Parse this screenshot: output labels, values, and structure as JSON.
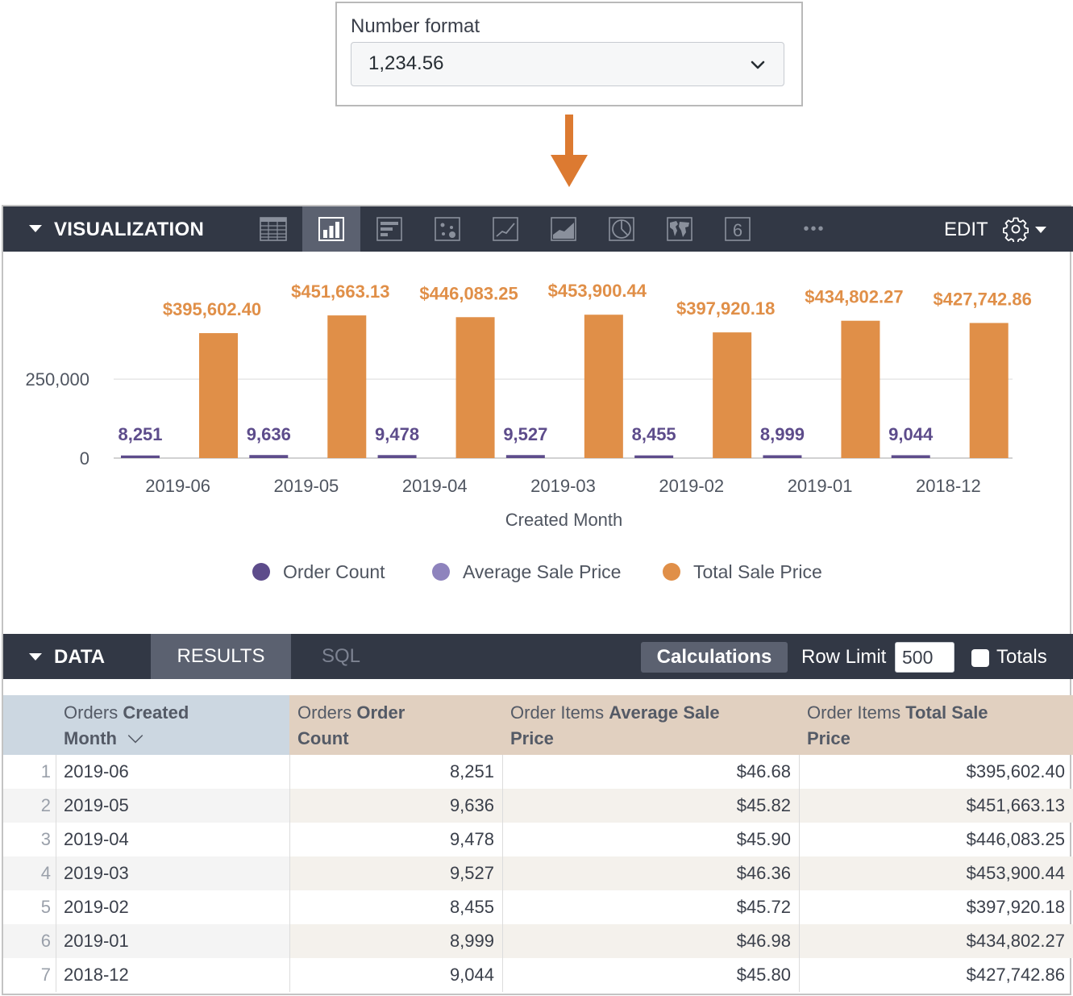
{
  "number_format": {
    "label": "Number format",
    "value": "1,234.56"
  },
  "visualization": {
    "title": "VISUALIZATION",
    "types": [
      "table-icon",
      "column-icon",
      "bar-icon",
      "scatter-icon",
      "line-icon",
      "area-icon",
      "pie-icon",
      "map-icon",
      "single-value-icon",
      "more-icon"
    ],
    "active_type": "column-icon",
    "single_value_glyph": "6",
    "more_glyph": "•••",
    "edit_label": "EDIT"
  },
  "chart_data": {
    "type": "bar",
    "categories": [
      "2019-06",
      "2019-05",
      "2019-04",
      "2019-03",
      "2019-02",
      "2019-01",
      "2018-12"
    ],
    "series": [
      {
        "name": "Order Count",
        "values": [
          8251,
          9636,
          9478,
          9527,
          8455,
          8999,
          9044
        ],
        "labels": [
          "8,251",
          "9,636",
          "9,478",
          "9,527",
          "8,455",
          "8,999",
          "9,044"
        ],
        "color": "#5d4c8b"
      },
      {
        "name": "Average Sale Price",
        "values": [
          46.68,
          45.82,
          45.9,
          46.36,
          45.72,
          46.98,
          45.8
        ],
        "labels": [],
        "color": "#8e83bd"
      },
      {
        "name": "Total Sale Price",
        "values": [
          395602.4,
          451663.13,
          446083.25,
          453900.44,
          397920.18,
          434802.27,
          427742.86
        ],
        "labels": [
          "$395,602.40",
          "$451,663.13",
          "$446,083.25",
          "$453,900.44",
          "$397,920.18",
          "$434,802.27",
          "$427,742.86"
        ],
        "color": "#e08f48"
      }
    ],
    "xlabel": "Created Month",
    "ylabel": "",
    "y_ticks": [
      {
        "value": 0,
        "label": "0"
      },
      {
        "value": 250000,
        "label": "250,000"
      }
    ],
    "ylim": [
      0,
      480000
    ],
    "grid": true,
    "legend_position": "bottom"
  },
  "data_panel": {
    "title": "DATA",
    "tabs": [
      "RESULTS",
      "SQL"
    ],
    "active_tab": "RESULTS",
    "calculations_label": "Calculations",
    "row_limit_label": "Row Limit",
    "row_limit_value": "500",
    "totals_label": "Totals",
    "totals_checked": false
  },
  "table": {
    "headers": [
      {
        "prefix": "Orders ",
        "bold": "Created",
        "line2": "Month"
      },
      {
        "prefix": "Orders ",
        "bold": "Order",
        "line2": "Count"
      },
      {
        "prefix": "Order Items ",
        "bold": "Average Sale",
        "line2": "Price"
      },
      {
        "prefix": "Order Items ",
        "bold": "Total Sale",
        "line2": "Price"
      }
    ],
    "sort_icon": "chevron-down-icon",
    "rows": [
      {
        "idx": "1",
        "month": "2019-06",
        "count": "8,251",
        "avg": "$46.68",
        "total": "$395,602.40"
      },
      {
        "idx": "2",
        "month": "2019-05",
        "count": "9,636",
        "avg": "$45.82",
        "total": "$451,663.13"
      },
      {
        "idx": "3",
        "month": "2019-04",
        "count": "9,478",
        "avg": "$45.90",
        "total": "$446,083.25"
      },
      {
        "idx": "4",
        "month": "2019-03",
        "count": "9,527",
        "avg": "$46.36",
        "total": "$453,900.44"
      },
      {
        "idx": "5",
        "month": "2019-02",
        "count": "8,455",
        "avg": "$45.72",
        "total": "$397,920.18"
      },
      {
        "idx": "6",
        "month": "2019-01",
        "count": "8,999",
        "avg": "$46.98",
        "total": "$434,802.27"
      },
      {
        "idx": "7",
        "month": "2018-12",
        "count": "9,044",
        "avg": "$45.80",
        "total": "$427,742.86"
      }
    ]
  },
  "colors": {
    "toolbar_bg": "#323845",
    "active_tab_bg": "#5b6170",
    "arrow": "#dc7a31",
    "dimension_header": "#ccd7e1",
    "measure_header": "#e1d0c0"
  }
}
